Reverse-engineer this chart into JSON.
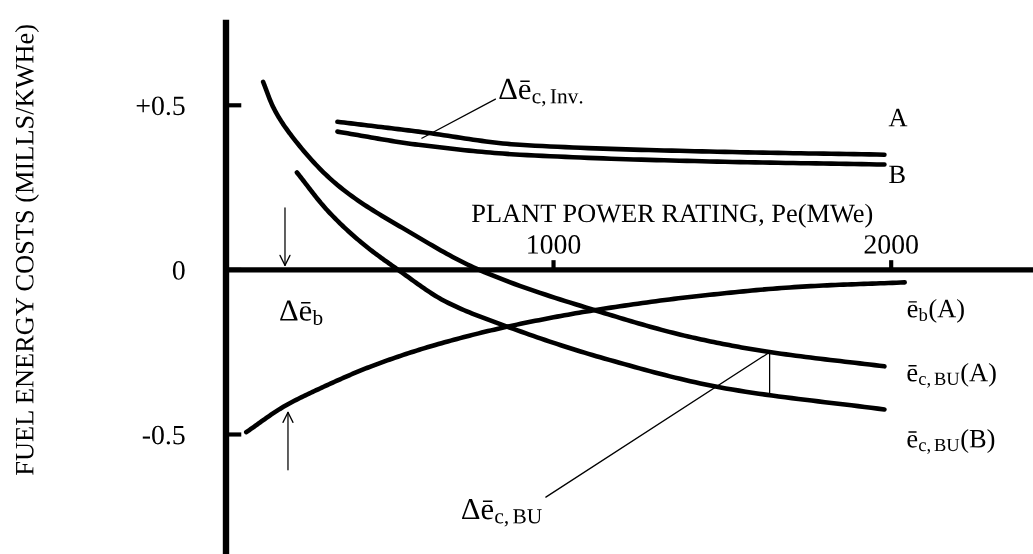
{
  "chart_data": {
    "type": "line",
    "xlabel": "PLANT POWER RATING, Pe(MWe)",
    "ylabel": "FUEL ENERGY COSTS (MILLS/KWHe)",
    "xlim": [
      30,
      2420
    ],
    "ylim": [
      -0.86,
      0.75
    ],
    "xticks": [
      1000,
      2000
    ],
    "yticks": [
      {
        "value": 0.5,
        "label": "+0.5"
      },
      0,
      -0.5
    ],
    "series": [
      {
        "name": "A",
        "color": "#000000",
        "x": [
          360,
          600,
          900,
          1440,
          1980
        ],
        "values": [
          0.45,
          0.42,
          0.38,
          0.36,
          0.35
        ]
      },
      {
        "name": "B",
        "color": "#000000",
        "x": [
          360,
          600,
          900,
          1440,
          1980
        ],
        "values": [
          0.42,
          0.38,
          0.35,
          0.33,
          0.32
        ]
      },
      {
        "name": "ē$_{b}$(A)",
        "color": "#000000",
        "x": [
          90,
          200,
          330,
          460,
          650,
          870,
          1130,
          1450,
          1750,
          2040
        ],
        "values": [
          -0.493,
          -0.416,
          -0.35,
          -0.293,
          -0.228,
          -0.171,
          -0.121,
          -0.077,
          -0.05,
          -0.038
        ]
      },
      {
        "name": "ē$_{c,BU}$(A)",
        "color": "#000000",
        "x": [
          140,
          170,
          220,
          360,
          570,
          780,
          1140,
          1410,
          1630,
          1980
        ],
        "values": [
          0.571,
          0.494,
          0.413,
          0.258,
          0.117,
          0.0,
          -0.128,
          -0.205,
          -0.248,
          -0.293
        ]
      },
      {
        "name": "ē$_{c,BU}$(B)",
        "color": "#000000",
        "x": [
          240,
          330,
          430,
          540,
          680,
          870,
          1150,
          1510,
          1980
        ],
        "values": [
          0.296,
          0.181,
          0.084,
          0.0,
          -0.096,
          -0.175,
          -0.269,
          -0.36,
          -0.424
        ]
      }
    ],
    "annotations": [
      {
        "text": "Δē$_{c,Inv.}$",
        "x": 610,
        "y": 0.4
      },
      "Δē$_{b}$",
      {
        "text": "Δē$_{c,BU}$",
        "x": 1640,
        "y": -0.25
      }
    ]
  }
}
